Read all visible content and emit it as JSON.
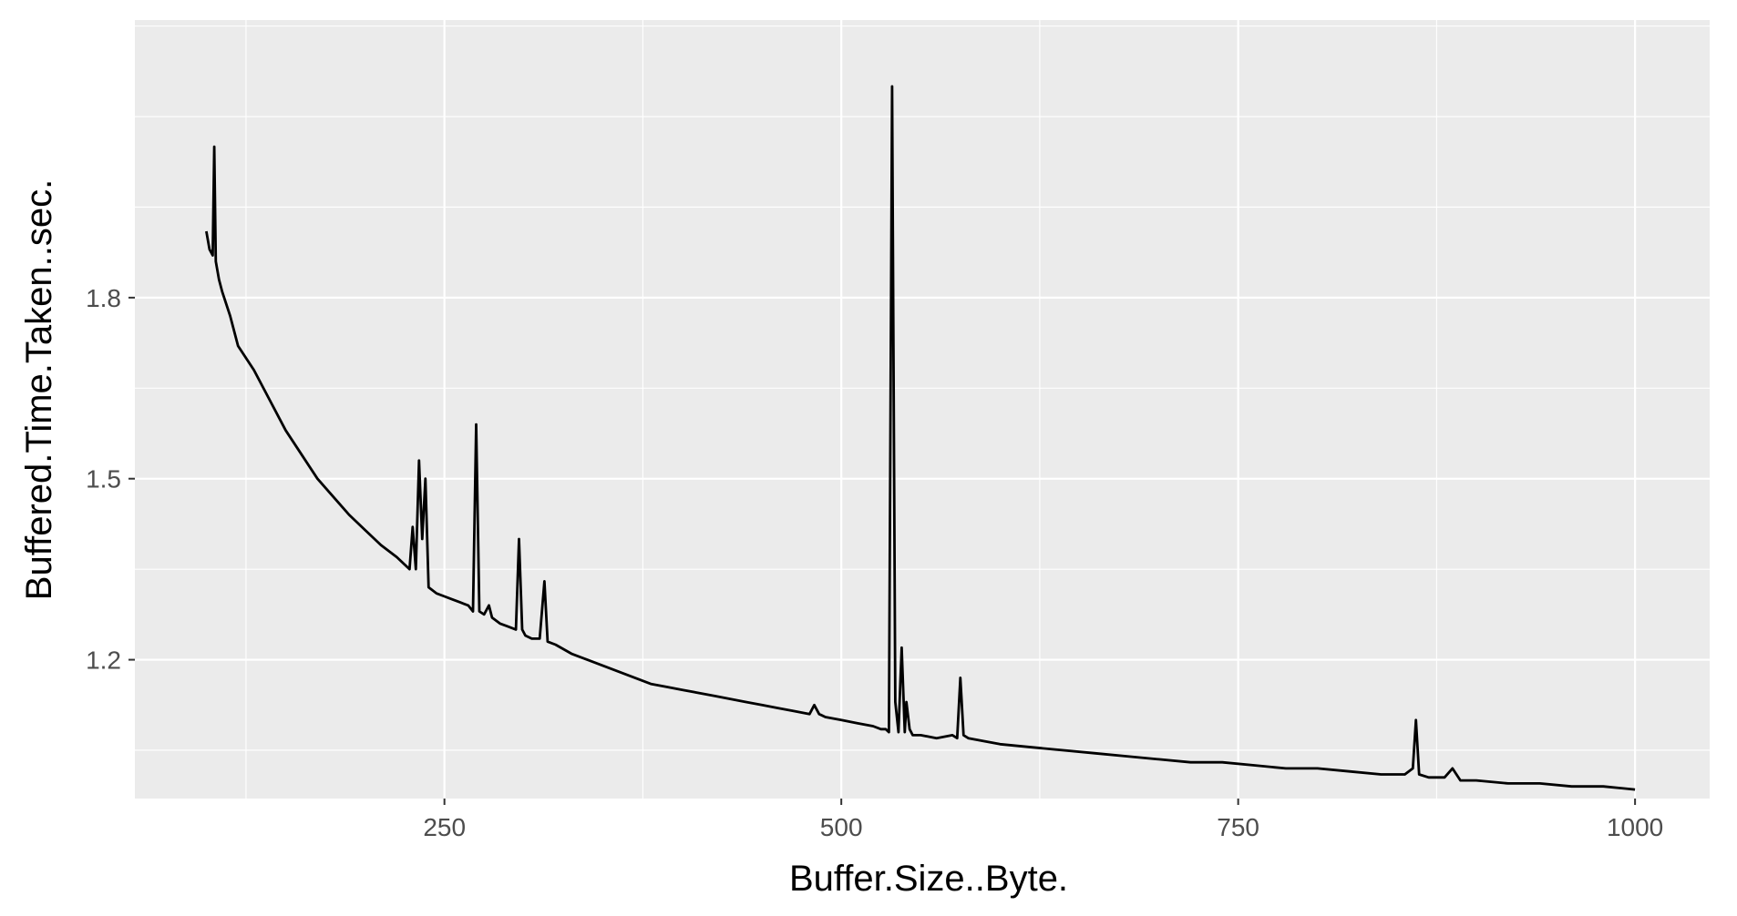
{
  "chart_data": {
    "type": "line",
    "title": "",
    "xlabel": "Buffer.Size..Byte.",
    "ylabel": "Buffered.Time.Taken..sec.",
    "xlim": [
      55,
      1047
    ],
    "ylim": [
      0.97,
      2.26
    ],
    "x_ticks": [
      250,
      500,
      750,
      1000
    ],
    "x_tick_labels": [
      "250",
      "500",
      "750",
      "1000"
    ],
    "y_ticks": [
      1.2,
      1.5,
      1.8
    ],
    "y_tick_labels": [
      "1.2",
      "1.5",
      "1.8"
    ],
    "grid": true,
    "legend": "none",
    "colors": {
      "panel": "#ebebeb",
      "grid": "#ffffff",
      "line": "#000000"
    },
    "series": [
      {
        "x": [
          100,
          102,
          104,
          105,
          106,
          108,
          110,
          115,
          120,
          130,
          140,
          150,
          160,
          170,
          180,
          190,
          200,
          210,
          220,
          228,
          230,
          232,
          234,
          236,
          238,
          240,
          245,
          250,
          255,
          260,
          265,
          268,
          270,
          272,
          275,
          278,
          280,
          285,
          290,
          295,
          297,
          299,
          301,
          305,
          310,
          313,
          315,
          320,
          330,
          340,
          350,
          360,
          370,
          380,
          390,
          400,
          410,
          420,
          430,
          440,
          450,
          460,
          470,
          480,
          483,
          486,
          490,
          500,
          510,
          520,
          525,
          528,
          530,
          532,
          534,
          536,
          538,
          540,
          541,
          543,
          545,
          550,
          560,
          570,
          573,
          575,
          577,
          580,
          590,
          600,
          620,
          640,
          660,
          680,
          700,
          720,
          740,
          760,
          780,
          800,
          820,
          840,
          855,
          860,
          862,
          864,
          870,
          880,
          885,
          890,
          900,
          920,
          940,
          960,
          980,
          1000
        ],
        "y": [
          1.91,
          1.88,
          1.87,
          2.05,
          1.86,
          1.83,
          1.81,
          1.77,
          1.72,
          1.68,
          1.63,
          1.58,
          1.54,
          1.5,
          1.47,
          1.44,
          1.415,
          1.39,
          1.37,
          1.35,
          1.42,
          1.35,
          1.53,
          1.4,
          1.5,
          1.32,
          1.31,
          1.305,
          1.3,
          1.295,
          1.29,
          1.28,
          1.59,
          1.28,
          1.275,
          1.29,
          1.27,
          1.26,
          1.255,
          1.25,
          1.4,
          1.25,
          1.24,
          1.235,
          1.235,
          1.33,
          1.23,
          1.225,
          1.21,
          1.2,
          1.19,
          1.18,
          1.17,
          1.16,
          1.155,
          1.15,
          1.145,
          1.14,
          1.135,
          1.13,
          1.125,
          1.12,
          1.115,
          1.11,
          1.125,
          1.11,
          1.105,
          1.1,
          1.095,
          1.09,
          1.085,
          1.085,
          1.08,
          2.15,
          1.13,
          1.08,
          1.22,
          1.08,
          1.13,
          1.085,
          1.075,
          1.075,
          1.07,
          1.075,
          1.07,
          1.17,
          1.075,
          1.07,
          1.065,
          1.06,
          1.055,
          1.05,
          1.045,
          1.04,
          1.035,
          1.03,
          1.03,
          1.025,
          1.02,
          1.02,
          1.015,
          1.01,
          1.01,
          1.02,
          1.1,
          1.01,
          1.005,
          1.005,
          1.02,
          1.0,
          1.0,
          0.995,
          0.995,
          0.99,
          0.99,
          0.985
        ]
      }
    ]
  }
}
